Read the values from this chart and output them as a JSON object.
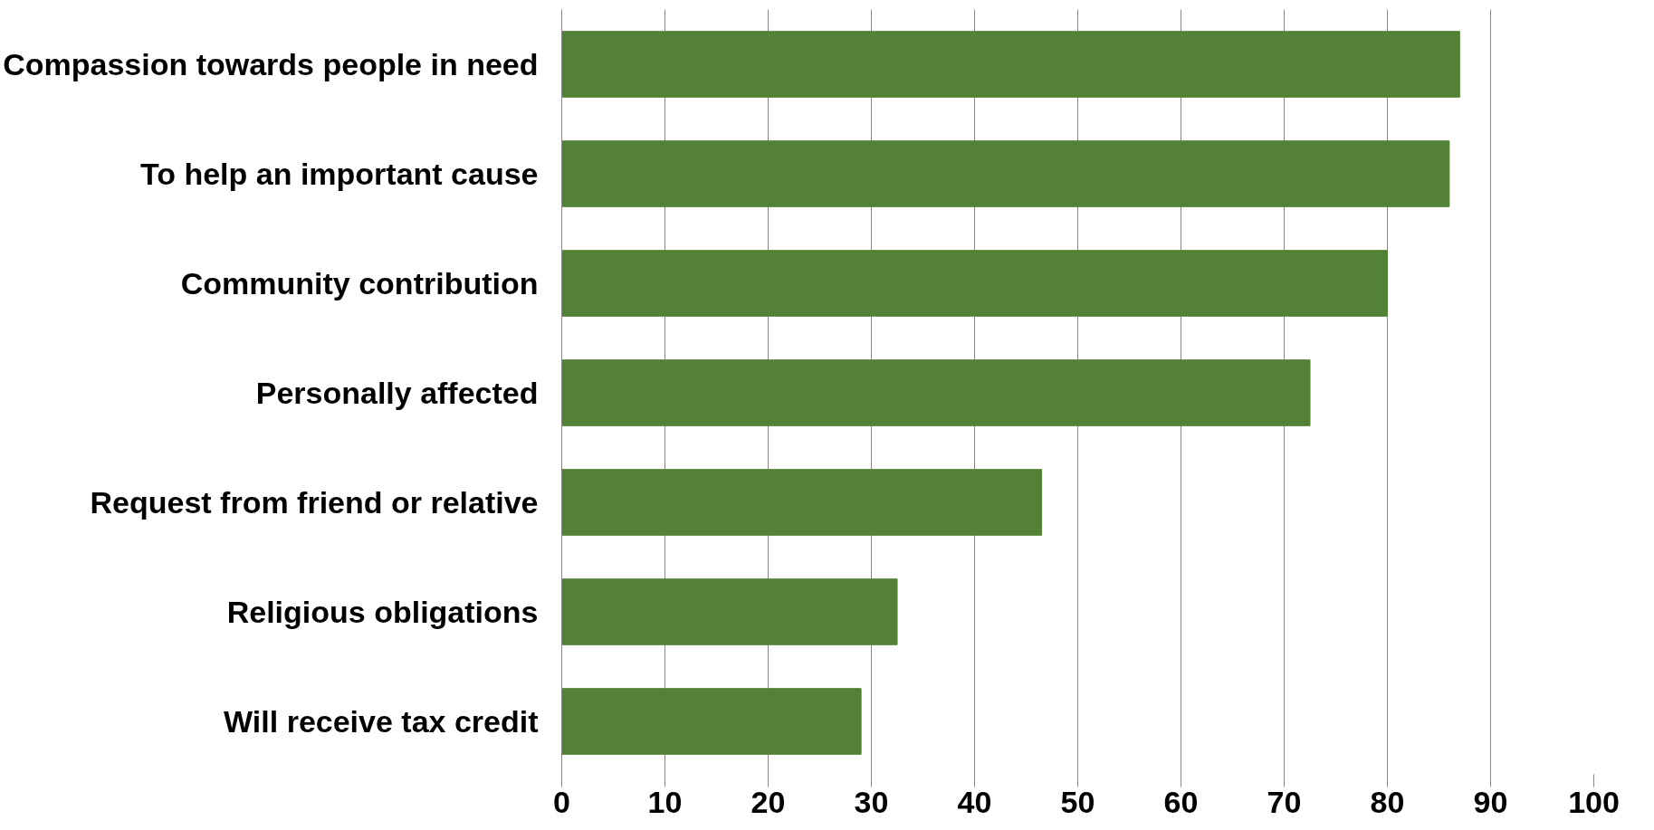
{
  "chart_data": {
    "type": "bar",
    "orientation": "horizontal",
    "categories": [
      "Compassion towards people in need",
      "To help an important cause",
      "Community contribution",
      "Personally affected",
      "Request from friend or relative",
      "Religious obligations",
      "Will receive tax credit"
    ],
    "values": [
      87,
      86,
      80,
      72.5,
      46.5,
      32.5,
      29
    ],
    "color": "#538135",
    "xlim": [
      0,
      100
    ],
    "xticks": [
      0,
      10,
      20,
      30,
      40,
      50,
      60,
      70,
      80,
      90,
      100
    ],
    "grid": "x"
  }
}
